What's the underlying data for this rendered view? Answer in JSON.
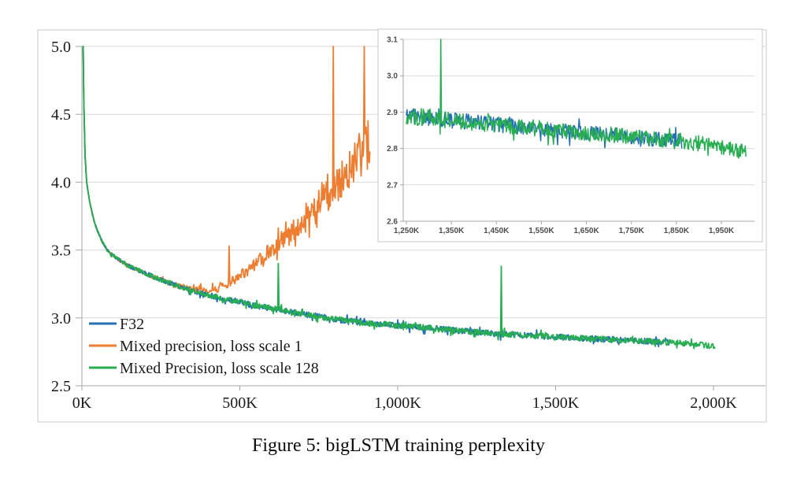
{
  "caption": "Figure 5: bigLSTM training perplexity",
  "colors": {
    "f32_blue": "#2570B4",
    "mixed_ls1_orange": "#ED7D31",
    "mixed_ls128_green": "#28AE51",
    "gridline": "#D9D9D9",
    "axis": "#A6A6A6",
    "chart_border": "#C9C9C9",
    "inset_border": "#C9C9C9",
    "tick_text": "#1a1a1a",
    "inset_tick_text": "#4d4d4d"
  },
  "legend": {
    "position": "inside-bottom-left",
    "items": [
      {
        "label": "F32",
        "color": "#2570B4"
      },
      {
        "label": "Mixed precision, loss scale 1",
        "color": "#ED7D31"
      },
      {
        "label": "Mixed Precision, loss scale 128",
        "color": "#28AE51"
      }
    ]
  },
  "chart_data": [
    {
      "id": "main",
      "type": "line",
      "title": "",
      "xlabel": "",
      "ylabel": "",
      "xlim": [
        0,
        2167
      ],
      "ylim": [
        2.5,
        5.0
      ],
      "grid": "horizontal",
      "xticks": [
        {
          "v": 0,
          "label": "0K"
        },
        {
          "v": 500,
          "label": "500K"
        },
        {
          "v": 1000,
          "label": "1,000K"
        },
        {
          "v": 1500,
          "label": "1,500K"
        },
        {
          "v": 2000,
          "label": "2,000K"
        }
      ],
      "yticks": [
        {
          "v": 2.5,
          "label": "2.5"
        },
        {
          "v": 3.0,
          "label": "3.0"
        },
        {
          "v": 3.5,
          "label": "3.5"
        },
        {
          "v": 4.0,
          "label": "4.0"
        },
        {
          "v": 4.5,
          "label": "4.5"
        },
        {
          "v": 5.0,
          "label": "5.0"
        }
      ],
      "series": [
        {
          "name": "F32",
          "color": "#2570B4",
          "z": 1,
          "seed": 11,
          "step": 2,
          "trend": [
            [
              4,
              5.3
            ],
            [
              6,
              4.6
            ],
            [
              10,
              4.2
            ],
            [
              15,
              4.0
            ],
            [
              25,
              3.85
            ],
            [
              40,
              3.7
            ],
            [
              60,
              3.58
            ],
            [
              80,
              3.5
            ],
            [
              110,
              3.44
            ],
            [
              150,
              3.38
            ],
            [
              200,
              3.33
            ],
            [
              250,
              3.28
            ],
            [
              300,
              3.24
            ],
            [
              350,
              3.2
            ],
            [
              400,
              3.17
            ],
            [
              450,
              3.14
            ],
            [
              500,
              3.12
            ],
            [
              550,
              3.09
            ],
            [
              600,
              3.07
            ],
            [
              650,
              3.05
            ],
            [
              700,
              3.03
            ],
            [
              750,
              3.01
            ],
            [
              800,
              2.99
            ],
            [
              850,
              2.975
            ],
            [
              900,
              2.96
            ],
            [
              1000,
              2.945
            ],
            [
              1100,
              2.925
            ],
            [
              1200,
              2.905
            ],
            [
              1300,
              2.885
            ],
            [
              1400,
              2.872
            ],
            [
              1500,
              2.86
            ],
            [
              1600,
              2.848
            ],
            [
              1700,
              2.838
            ],
            [
              1800,
              2.826
            ],
            [
              1862,
              2.82
            ]
          ],
          "noise_band": [
            [
              4,
              0.006
            ],
            [
              60,
              0.01
            ],
            [
              200,
              0.016
            ],
            [
              400,
              0.02
            ],
            [
              800,
              0.022
            ],
            [
              1862,
              0.022
            ]
          ],
          "spikes": []
        },
        {
          "name": "Mixed precision, loss scale 1",
          "color": "#ED7D31",
          "z": 0,
          "seed": 27,
          "step": 2,
          "trend": [
            [
              4,
              5.3
            ],
            [
              6,
              4.6
            ],
            [
              10,
              4.2
            ],
            [
              15,
              4.0
            ],
            [
              25,
              3.85
            ],
            [
              40,
              3.7
            ],
            [
              60,
              3.58
            ],
            [
              80,
              3.5
            ],
            [
              110,
              3.44
            ],
            [
              150,
              3.38
            ],
            [
              200,
              3.33
            ],
            [
              250,
              3.28
            ],
            [
              300,
              3.24
            ],
            [
              350,
              3.21
            ],
            [
              400,
              3.2
            ],
            [
              430,
              3.21
            ],
            [
              460,
              3.25
            ],
            [
              500,
              3.31
            ],
            [
              550,
              3.4
            ],
            [
              600,
              3.5
            ],
            [
              650,
              3.6
            ],
            [
              700,
              3.71
            ],
            [
              750,
              3.83
            ],
            [
              800,
              3.96
            ],
            [
              840,
              4.06
            ],
            [
              870,
              4.16
            ],
            [
              900,
              4.26
            ],
            [
              912,
              4.32
            ]
          ],
          "noise_band": [
            [
              4,
              0.006
            ],
            [
              60,
              0.01
            ],
            [
              200,
              0.016
            ],
            [
              350,
              0.02
            ],
            [
              450,
              0.03
            ],
            [
              550,
              0.05
            ],
            [
              650,
              0.08
            ],
            [
              750,
              0.11
            ],
            [
              820,
              0.14
            ],
            [
              870,
              0.17
            ],
            [
              912,
              0.19
            ]
          ],
          "spikes": [
            [
              465,
              3.53
            ],
            [
              795,
              5.35
            ],
            [
              893,
              5.35
            ]
          ]
        },
        {
          "name": "Mixed Precision, loss scale 128",
          "color": "#28AE51",
          "z": 2,
          "seed": 93,
          "step": 2,
          "trend": [
            [
              4,
              5.3
            ],
            [
              6,
              4.6
            ],
            [
              10,
              4.2
            ],
            [
              15,
              4.0
            ],
            [
              25,
              3.85
            ],
            [
              40,
              3.7
            ],
            [
              60,
              3.58
            ],
            [
              80,
              3.5
            ],
            [
              110,
              3.44
            ],
            [
              150,
              3.38
            ],
            [
              200,
              3.33
            ],
            [
              250,
              3.28
            ],
            [
              300,
              3.24
            ],
            [
              350,
              3.2
            ],
            [
              400,
              3.17
            ],
            [
              450,
              3.14
            ],
            [
              500,
              3.12
            ],
            [
              550,
              3.09
            ],
            [
              600,
              3.07
            ],
            [
              650,
              3.05
            ],
            [
              700,
              3.03
            ],
            [
              750,
              3.01
            ],
            [
              800,
              2.99
            ],
            [
              850,
              2.975
            ],
            [
              900,
              2.96
            ],
            [
              1000,
              2.945
            ],
            [
              1100,
              2.925
            ],
            [
              1200,
              2.905
            ],
            [
              1300,
              2.885
            ],
            [
              1400,
              2.872
            ],
            [
              1500,
              2.86
            ],
            [
              1600,
              2.848
            ],
            [
              1700,
              2.838
            ],
            [
              1800,
              2.826
            ],
            [
              1862,
              2.82
            ],
            [
              1900,
              2.815
            ],
            [
              1950,
              2.805
            ],
            [
              2005,
              2.79
            ]
          ],
          "noise_band": [
            [
              4,
              0.006
            ],
            [
              60,
              0.01
            ],
            [
              200,
              0.016
            ],
            [
              400,
              0.02
            ],
            [
              800,
              0.022
            ],
            [
              2005,
              0.022
            ]
          ],
          "spikes": [
            [
              622,
              3.4
            ],
            [
              1327,
              3.38
            ]
          ]
        }
      ]
    },
    {
      "id": "inset",
      "type": "line",
      "title": "",
      "xlabel": "",
      "ylabel": "",
      "xlim": [
        1250,
        2030
      ],
      "ylim": [
        2.6,
        3.1
      ],
      "grid": "horizontal",
      "xticks": [
        {
          "v": 1250,
          "label": "1,250K"
        },
        {
          "v": 1350,
          "label": "1,350K"
        },
        {
          "v": 1450,
          "label": "1,450K"
        },
        {
          "v": 1550,
          "label": "1,550K"
        },
        {
          "v": 1650,
          "label": "1,650K"
        },
        {
          "v": 1750,
          "label": "1,750K"
        },
        {
          "v": 1850,
          "label": "1,850K"
        },
        {
          "v": 1950,
          "label": "1,950K"
        }
      ],
      "yticks": [
        {
          "v": 2.6,
          "label": "2.6"
        },
        {
          "v": 2.7,
          "label": "2.7"
        },
        {
          "v": 2.8,
          "label": "2.8"
        },
        {
          "v": 2.9,
          "label": "2.9"
        },
        {
          "v": 3.0,
          "label": "3.0"
        },
        {
          "v": 3.1,
          "label": "3.1"
        }
      ],
      "series": [
        {
          "name": "F32",
          "color": "#2570B4",
          "z": 0,
          "seed": 61,
          "step": 1.5,
          "trend": [
            [
              1250,
              2.89
            ],
            [
              1300,
              2.885
            ],
            [
              1350,
              2.878
            ],
            [
              1400,
              2.872
            ],
            [
              1450,
              2.866
            ],
            [
              1500,
              2.86
            ],
            [
              1550,
              2.854
            ],
            [
              1600,
              2.848
            ],
            [
              1650,
              2.843
            ],
            [
              1700,
              2.838
            ],
            [
              1750,
              2.832
            ],
            [
              1800,
              2.826
            ],
            [
              1862,
              2.82
            ]
          ],
          "noise_band": [
            [
              1250,
              0.022
            ],
            [
              1862,
              0.02
            ]
          ],
          "spikes": []
        },
        {
          "name": "Mixed Precision, loss scale 128",
          "color": "#28AE51",
          "z": 1,
          "seed": 87,
          "step": 1.5,
          "trend": [
            [
              1250,
              2.89
            ],
            [
              1300,
              2.885
            ],
            [
              1350,
              2.878
            ],
            [
              1400,
              2.872
            ],
            [
              1450,
              2.866
            ],
            [
              1500,
              2.86
            ],
            [
              1550,
              2.854
            ],
            [
              1600,
              2.848
            ],
            [
              1650,
              2.843
            ],
            [
              1700,
              2.838
            ],
            [
              1750,
              2.832
            ],
            [
              1800,
              2.826
            ],
            [
              1862,
              2.82
            ],
            [
              1900,
              2.815
            ],
            [
              1950,
              2.805
            ],
            [
              2005,
              2.788
            ]
          ],
          "noise_band": [
            [
              1250,
              0.024
            ],
            [
              2005,
              0.022
            ]
          ],
          "spikes": [
            [
              1327,
              3.16
            ]
          ]
        }
      ]
    }
  ]
}
